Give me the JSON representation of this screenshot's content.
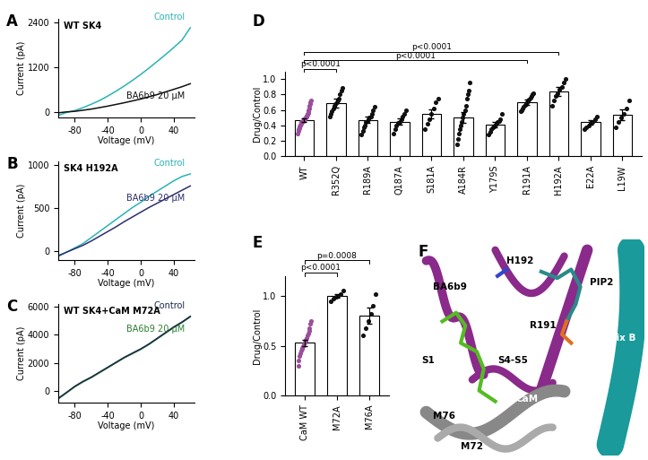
{
  "chart_data": [
    {
      "type": "line",
      "panel": "A",
      "annotations": [
        "WT SK4"
      ],
      "x_label": "Voltage (mV)",
      "y_label": "Current (pA)",
      "x": [
        -100,
        -90,
        -80,
        -70,
        -60,
        -50,
        -40,
        -30,
        -20,
        -10,
        0,
        10,
        20,
        30,
        40,
        50,
        60
      ],
      "series": [
        {
          "name": "Control",
          "color": "#2ab3b3",
          "values": [
            -100,
            -20,
            30,
            110,
            200,
            300,
            420,
            550,
            690,
            840,
            1000,
            1170,
            1350,
            1530,
            1720,
            1920,
            2250
          ]
        },
        {
          "name": "BA6b9 20 µM",
          "color": "#111111",
          "values": [
            -30,
            -5,
            10,
            40,
            70,
            110,
            150,
            195,
            240,
            290,
            340,
            400,
            460,
            530,
            600,
            670,
            750
          ]
        }
      ],
      "xlim": [
        -100,
        65
      ],
      "xticks": [
        -80,
        -40,
        0,
        40
      ],
      "ylim": [
        -150,
        2500
      ],
      "yticks": [
        0,
        1200,
        2400
      ]
    },
    {
      "type": "line",
      "panel": "B",
      "annotations": [
        "SK4 H192A"
      ],
      "x_label": "Voltage (mV)",
      "y_label": "Current (pA)",
      "x": [
        -100,
        -90,
        -80,
        -70,
        -60,
        -50,
        -40,
        -30,
        -20,
        -10,
        0,
        10,
        20,
        30,
        40,
        50,
        60
      ],
      "series": [
        {
          "name": "Control",
          "color": "#2ab3b3",
          "values": [
            -60,
            -10,
            40,
            90,
            160,
            230,
            300,
            370,
            440,
            510,
            570,
            640,
            700,
            760,
            820,
            870,
            900
          ]
        },
        {
          "name": "BA6b9 20 µM",
          "color": "#2b2f6e",
          "values": [
            -50,
            -10,
            30,
            70,
            120,
            175,
            230,
            285,
            345,
            400,
            455,
            510,
            560,
            610,
            660,
            710,
            760
          ]
        }
      ],
      "xlim": [
        -100,
        65
      ],
      "xticks": [
        -80,
        -40,
        0,
        40
      ],
      "ylim": [
        -100,
        1050
      ],
      "yticks": [
        0,
        500,
        1000
      ]
    },
    {
      "type": "line",
      "panel": "C",
      "annotations": [
        "WT SK4+CaM M72A"
      ],
      "x_label": "Voltage (mV)",
      "y_label": "Current (pA)",
      "x": [
        -100,
        -90,
        -80,
        -70,
        -60,
        -50,
        -40,
        -30,
        -20,
        -10,
        0,
        10,
        20,
        30,
        40,
        50,
        60
      ],
      "series": [
        {
          "name": "BA6b9 20 µM",
          "color": "#2e7d32",
          "values": [
            -540,
            -120,
            310,
            660,
            960,
            1310,
            1660,
            2010,
            2360,
            2660,
            2960,
            3310,
            3710,
            4110,
            4510,
            4860,
            5260
          ]
        },
        {
          "name": "Control",
          "color": "#1a2a4a",
          "values": [
            -500,
            -80,
            350,
            700,
            1000,
            1350,
            1700,
            2050,
            2400,
            2700,
            3000,
            3350,
            3750,
            4150,
            4550,
            4900,
            5300
          ]
        }
      ],
      "xlim": [
        -100,
        65
      ],
      "xticks": [
        -80,
        -40,
        0,
        40
      ],
      "ylim": [
        -800,
        6200
      ],
      "yticks": [
        0,
        2000,
        4000,
        6000
      ]
    },
    {
      "type": "bar",
      "panel": "D",
      "y_label": "Drug/Control",
      "categories": [
        "WT",
        "R352Q",
        "R189A",
        "Q187A",
        "S181A",
        "A184R",
        "Y179S",
        "R191A",
        "H192A",
        "E22A",
        "L19W"
      ],
      "values": [
        0.47,
        0.69,
        0.47,
        0.45,
        0.55,
        0.5,
        0.41,
        0.7,
        0.84,
        0.44,
        0.54
      ],
      "errors": [
        0.02,
        0.06,
        0.04,
        0.04,
        0.06,
        0.07,
        0.03,
        0.03,
        0.06,
        0.03,
        0.07
      ],
      "points": [
        [
          0.3,
          0.33,
          0.35,
          0.36,
          0.38,
          0.39,
          0.4,
          0.41,
          0.42,
          0.43,
          0.44,
          0.44,
          0.45,
          0.46,
          0.46,
          0.47,
          0.47,
          0.48,
          0.48,
          0.49,
          0.5,
          0.5,
          0.51,
          0.52,
          0.53,
          0.54,
          0.55,
          0.56,
          0.58,
          0.6,
          0.62,
          0.65,
          0.68,
          0.7,
          0.72
        ],
        [
          0.52,
          0.55,
          0.58,
          0.62,
          0.65,
          0.68,
          0.7,
          0.72,
          0.75,
          0.8,
          0.85,
          0.88
        ],
        [
          0.28,
          0.33,
          0.38,
          0.4,
          0.44,
          0.46,
          0.48,
          0.5,
          0.52,
          0.55,
          0.6,
          0.64
        ],
        [
          0.3,
          0.35,
          0.4,
          0.43,
          0.45,
          0.48,
          0.52,
          0.55,
          0.6
        ],
        [
          0.35,
          0.42,
          0.48,
          0.55,
          0.62,
          0.7,
          0.75
        ],
        [
          0.15,
          0.22,
          0.3,
          0.35,
          0.4,
          0.45,
          0.5,
          0.55,
          0.6,
          0.65,
          0.75,
          0.8,
          0.85,
          0.95
        ],
        [
          0.28,
          0.32,
          0.35,
          0.37,
          0.39,
          0.4,
          0.42,
          0.44,
          0.46,
          0.48,
          0.55
        ],
        [
          0.58,
          0.6,
          0.62,
          0.64,
          0.66,
          0.68,
          0.7,
          0.72,
          0.74,
          0.76,
          0.78,
          0.8,
          0.82
        ],
        [
          0.65,
          0.72,
          0.78,
          0.82,
          0.86,
          0.9,
          0.95,
          1.0
        ],
        [
          0.35,
          0.38,
          0.4,
          0.43,
          0.45,
          0.48,
          0.52
        ],
        [
          0.38,
          0.45,
          0.5,
          0.55,
          0.62,
          0.72
        ]
      ],
      "colors": [
        "#9b4f9b",
        "#111111",
        "#111111",
        "#111111",
        "#111111",
        "#111111",
        "#111111",
        "#111111",
        "#111111",
        "#111111",
        "#111111"
      ],
      "comparisons": [
        {
          "from": "WT",
          "to": "R352Q",
          "label": "p<0.0001"
        },
        {
          "from": "WT",
          "to": "R191A",
          "label": "p<0.0001"
        },
        {
          "from": "WT",
          "to": "H192A",
          "label": "p<0.0001"
        }
      ],
      "ylim": [
        0,
        1.1
      ],
      "yticks": [
        {
          "value": 0,
          "label": "0.0"
        },
        {
          "value": 0.2,
          "label": "0.2"
        },
        {
          "value": 0.4,
          "label": "0.4"
        },
        {
          "value": 0.6,
          "label": "0.6"
        },
        {
          "value": 0.8,
          "label": "0.8"
        },
        {
          "value": 1,
          "label": "1.0"
        }
      ]
    },
    {
      "type": "bar",
      "panel": "E",
      "y_label": "Drug/Control",
      "categories": [
        "CaM WT",
        "M72A",
        "M76A"
      ],
      "values": [
        0.53,
        1.0,
        0.8
      ],
      "errors": [
        0.03,
        0.02,
        0.08
      ],
      "points": [
        [
          0.3,
          0.35,
          0.4,
          0.42,
          0.45,
          0.47,
          0.48,
          0.5,
          0.52,
          0.53,
          0.55,
          0.56,
          0.58,
          0.6,
          0.62,
          0.65,
          0.68,
          0.72,
          0.75
        ],
        [
          0.95,
          0.97,
          0.99,
          1.0,
          1.02,
          1.05
        ],
        [
          0.6,
          0.68,
          0.75,
          0.82,
          0.9,
          1.02
        ]
      ],
      "colors": [
        "#9b4f9b",
        "#111111",
        "#111111"
      ],
      "comparisons": [
        {
          "from": "CaM WT",
          "to": "M72A",
          "label": "p<0.0001"
        },
        {
          "from": "CaM WT",
          "to": "M76A",
          "label": "p=0.0008"
        }
      ],
      "ylim": [
        0,
        1.2
      ],
      "yticks": [
        {
          "value": 0,
          "label": "0.0"
        },
        {
          "value": 0.5,
          "label": "0.5"
        },
        {
          "value": 1,
          "label": "1.0"
        }
      ]
    }
  ],
  "diagram": {
    "panel": "F",
    "labels": [
      "H192",
      "BA6b9",
      "PIP2",
      "R191",
      "S1",
      "S4-S5",
      "CaM",
      "M76",
      "M72",
      "Helix B"
    ]
  }
}
